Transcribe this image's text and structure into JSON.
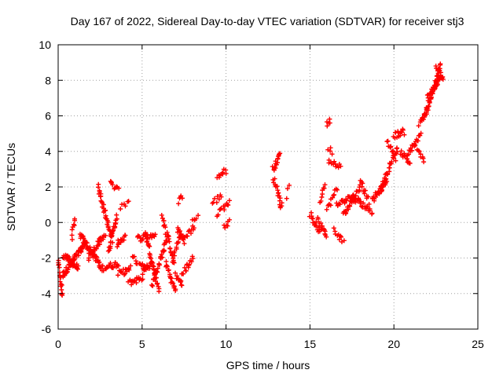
{
  "chart_data": {
    "type": "scatter",
    "title": "Day 167 of 2022, Sidereal Day-to-day VTEC variation (SDTVAR) for receiver stj3",
    "xlabel": "GPS time / hours",
    "ylabel": "SDTVAR / TECUs",
    "xlim": [
      0,
      25
    ],
    "ylim": [
      -6,
      10
    ],
    "xticks": [
      0,
      5,
      10,
      15,
      20,
      25
    ],
    "yticks": [
      -6,
      -4,
      -2,
      0,
      2,
      4,
      6,
      8,
      10
    ],
    "grid": true,
    "marker": "+",
    "color": "#ff0000",
    "series": [
      {
        "name": "SDTVAR",
        "segments": [
          {
            "x0": 0.0,
            "x1": 0.25,
            "y0": -2.2,
            "y1": -4.1,
            "n": 18
          },
          {
            "x0": 0.25,
            "x1": 1.6,
            "y0": -3.0,
            "y1": -1.2,
            "n": 60
          },
          {
            "x0": 0.3,
            "x1": 1.2,
            "y0": -1.8,
            "y1": -2.6,
            "n": 30
          },
          {
            "x0": 0.8,
            "x1": 1.0,
            "y0": -0.8,
            "y1": 0.1,
            "n": 8
          },
          {
            "x0": 1.3,
            "x1": 2.5,
            "y0": -0.7,
            "y1": -2.4,
            "n": 40
          },
          {
            "x0": 1.8,
            "x1": 2.8,
            "y0": -2.0,
            "y1": -0.6,
            "n": 30
          },
          {
            "x0": 2.4,
            "x1": 3.2,
            "y0": 2.0,
            "y1": -1.0,
            "n": 35
          },
          {
            "x0": 2.5,
            "x1": 3.6,
            "y0": -2.6,
            "y1": -2.3,
            "n": 25
          },
          {
            "x0": 3.0,
            "x1": 3.5,
            "y0": -1.6,
            "y1": 0.4,
            "n": 20
          },
          {
            "x0": 3.1,
            "x1": 3.6,
            "y0": 2.2,
            "y1": 1.8,
            "n": 10
          },
          {
            "x0": 3.5,
            "x1": 4.0,
            "y0": -1.2,
            "y1": -0.8,
            "n": 15
          },
          {
            "x0": 3.6,
            "x1": 4.3,
            "y0": -2.9,
            "y1": -2.6,
            "n": 15
          },
          {
            "x0": 3.7,
            "x1": 4.2,
            "y0": 0.8,
            "y1": 1.2,
            "n": 6
          },
          {
            "x0": 4.2,
            "x1": 5.0,
            "y0": -3.4,
            "y1": -3.1,
            "n": 18
          },
          {
            "x0": 4.4,
            "x1": 5.4,
            "y0": -2.0,
            "y1": -2.6,
            "n": 16
          },
          {
            "x0": 4.7,
            "x1": 5.8,
            "y0": -0.9,
            "y1": -0.7,
            "n": 20
          },
          {
            "x0": 5.0,
            "x1": 5.6,
            "y0": -2.8,
            "y1": -2.3,
            "n": 12
          },
          {
            "x0": 5.2,
            "x1": 6.0,
            "y0": -0.6,
            "y1": -3.8,
            "n": 30
          },
          {
            "x0": 5.6,
            "x1": 6.5,
            "y0": -3.5,
            "y1": -0.9,
            "n": 30
          },
          {
            "x0": 6.2,
            "x1": 6.9,
            "y0": 0.4,
            "y1": -2.3,
            "n": 25
          },
          {
            "x0": 6.4,
            "x1": 7.0,
            "y0": -2.3,
            "y1": -3.9,
            "n": 20
          },
          {
            "x0": 6.8,
            "x1": 7.3,
            "y0": -2.2,
            "y1": -0.6,
            "n": 15
          },
          {
            "x0": 7.0,
            "x1": 7.4,
            "y0": -3.0,
            "y1": -3.5,
            "n": 10
          },
          {
            "x0": 7.1,
            "x1": 7.5,
            "y0": -0.3,
            "y1": -1.1,
            "n": 12
          },
          {
            "x0": 7.2,
            "x1": 7.4,
            "y0": 1.2,
            "y1": 1.4,
            "n": 5
          },
          {
            "x0": 7.4,
            "x1": 8.0,
            "y0": -2.9,
            "y1": -2.0,
            "n": 15
          },
          {
            "x0": 7.5,
            "x1": 8.1,
            "y0": -0.9,
            "y1": -0.2,
            "n": 12
          },
          {
            "x0": 8.0,
            "x1": 8.3,
            "y0": 0.1,
            "y1": 0.3,
            "n": 5
          },
          {
            "x0": 9.2,
            "x1": 9.7,
            "y0": 1.1,
            "y1": 1.5,
            "n": 8
          },
          {
            "x0": 9.5,
            "x1": 10.0,
            "y0": 2.6,
            "y1": 2.9,
            "n": 10
          },
          {
            "x0": 9.5,
            "x1": 10.2,
            "y0": 0.5,
            "y1": 1.2,
            "n": 12
          },
          {
            "x0": 9.9,
            "x1": 10.2,
            "y0": -0.3,
            "y1": 0.1,
            "n": 6
          },
          {
            "x0": 12.8,
            "x1": 13.2,
            "y0": 3.0,
            "y1": 3.8,
            "n": 15
          },
          {
            "x0": 12.8,
            "x1": 13.3,
            "y0": 2.5,
            "y1": 1.2,
            "n": 15
          },
          {
            "x0": 13.2,
            "x1": 13.3,
            "y0": 0.8,
            "y1": 1.1,
            "n": 4
          },
          {
            "x0": 13.6,
            "x1": 13.8,
            "y0": 1.4,
            "y1": 2.1,
            "n": 3
          },
          {
            "x0": 15.0,
            "x1": 15.6,
            "y0": 0.5,
            "y1": -0.6,
            "n": 15
          },
          {
            "x0": 15.4,
            "x1": 16.0,
            "y0": 0.2,
            "y1": -0.8,
            "n": 15
          },
          {
            "x0": 15.6,
            "x1": 15.9,
            "y0": 1.2,
            "y1": 2.2,
            "n": 8
          },
          {
            "x0": 16.0,
            "x1": 16.2,
            "y0": 5.5,
            "y1": 5.7,
            "n": 5
          },
          {
            "x0": 16.1,
            "x1": 16.3,
            "y0": 4.2,
            "y1": 4.0,
            "n": 4
          },
          {
            "x0": 16.1,
            "x1": 16.8,
            "y0": 3.5,
            "y1": 3.2,
            "n": 12
          },
          {
            "x0": 16.0,
            "x1": 16.6,
            "y0": 0.7,
            "y1": 1.9,
            "n": 12
          },
          {
            "x0": 16.4,
            "x1": 17.0,
            "y0": -0.4,
            "y1": -1.1,
            "n": 10
          },
          {
            "x0": 16.6,
            "x1": 17.6,
            "y0": 1.0,
            "y1": 1.5,
            "n": 20
          },
          {
            "x0": 17.0,
            "x1": 18.0,
            "y0": 0.4,
            "y1": 2.0,
            "n": 25
          },
          {
            "x0": 17.5,
            "x1": 18.7,
            "y0": 1.5,
            "y1": 0.6,
            "n": 25
          },
          {
            "x0": 18.0,
            "x1": 18.5,
            "y0": 2.4,
            "y1": 1.2,
            "n": 12
          },
          {
            "x0": 18.7,
            "x1": 19.6,
            "y0": 1.2,
            "y1": 2.4,
            "n": 25
          },
          {
            "x0": 19.2,
            "x1": 20.2,
            "y0": 1.8,
            "y1": 4.2,
            "n": 30
          },
          {
            "x0": 19.6,
            "x1": 20.1,
            "y0": 4.6,
            "y1": 3.6,
            "n": 12
          },
          {
            "x0": 20.0,
            "x1": 20.6,
            "y0": 4.9,
            "y1": 5.1,
            "n": 15
          },
          {
            "x0": 20.4,
            "x1": 21.0,
            "y0": 4.0,
            "y1": 3.3,
            "n": 15
          },
          {
            "x0": 20.8,
            "x1": 21.6,
            "y0": 3.8,
            "y1": 4.9,
            "n": 20
          },
          {
            "x0": 21.4,
            "x1": 21.8,
            "y0": 4.1,
            "y1": 3.5,
            "n": 8
          },
          {
            "x0": 21.5,
            "x1": 22.0,
            "y0": 5.5,
            "y1": 6.4,
            "n": 12
          },
          {
            "x0": 21.8,
            "x1": 22.8,
            "y0": 5.8,
            "y1": 8.8,
            "n": 40
          },
          {
            "x0": 22.0,
            "x1": 22.9,
            "y0": 7.0,
            "y1": 8.3,
            "n": 30
          },
          {
            "x0": 22.5,
            "x1": 22.9,
            "y0": 8.9,
            "y1": 8.2,
            "n": 10
          }
        ]
      }
    ]
  }
}
